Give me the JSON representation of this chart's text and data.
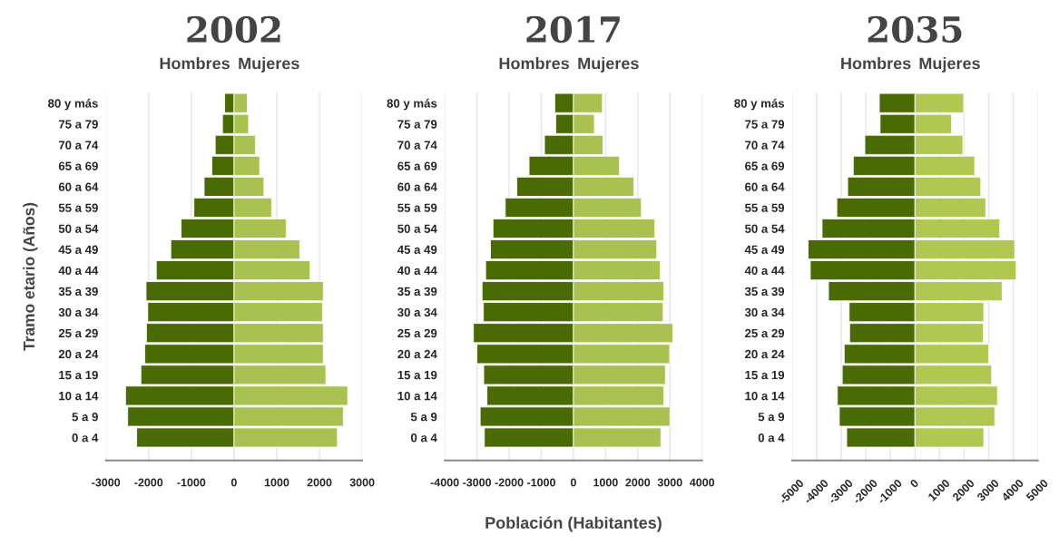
{
  "chart_data": [
    {
      "type": "bar",
      "title": "2002",
      "orientation": "horizontal",
      "stacked": true,
      "ylabel": "Tramo etario (Años)",
      "categories": [
        "80 y más",
        "75 a 79",
        "70 a 74",
        "65 a 69",
        "60 a 64",
        "55 a 59",
        "50 a 54",
        "45 a 49",
        "40 a 44",
        "35 a 39",
        "30 a 34",
        "25 a 29",
        "20 a 24",
        "15 a 19",
        "10 a 14",
        "5 a 9",
        "0 a 4"
      ],
      "series": [
        {
          "name": "Hombres",
          "color": "#4a6a04",
          "values": [
            -220,
            -270,
            -440,
            -520,
            -700,
            -940,
            -1240,
            -1480,
            -1820,
            -2060,
            -2020,
            -2050,
            -2090,
            -2180,
            -2540,
            -2490,
            -2280
          ]
        },
        {
          "name": "Mujeres",
          "color": "#a8c150",
          "values": [
            310,
            340,
            500,
            600,
            700,
            880,
            1220,
            1540,
            1780,
            2090,
            2070,
            2090,
            2090,
            2150,
            2660,
            2560,
            2420
          ]
        }
      ],
      "xlim": [
        -3000,
        3000
      ],
      "xticks": [
        -3000,
        -2000,
        -1000,
        0,
        1000,
        2000,
        3000
      ],
      "grid": "x"
    },
    {
      "type": "bar",
      "title": "2017",
      "orientation": "horizontal",
      "stacked": true,
      "xlabel": "Población (Habitantes)",
      "categories": [
        "80 y más",
        "75 a 79",
        "70 a 74",
        "65 a 69",
        "60 a 64",
        "55 a 59",
        "50 a 54",
        "45 a 49",
        "40 a 44",
        "35 a 39",
        "30 a 34",
        "25 a 29",
        "20 a 24",
        "15 a 19",
        "10 a 14",
        "5 a 9",
        "0 a 4"
      ],
      "series": [
        {
          "name": "Hombres",
          "color": "#4a6a04",
          "values": [
            -580,
            -550,
            -900,
            -1380,
            -1760,
            -2120,
            -2500,
            -2580,
            -2730,
            -2840,
            -2800,
            -3110,
            -3000,
            -2790,
            -2690,
            -2900,
            -2770
          ]
        },
        {
          "name": "Mujeres",
          "color": "#a8c150",
          "values": [
            900,
            650,
            920,
            1430,
            1880,
            2110,
            2530,
            2590,
            2700,
            2810,
            2790,
            3090,
            2990,
            2860,
            2810,
            3000,
            2720
          ]
        }
      ],
      "xlim": [
        -4000,
        4000
      ],
      "xticks": [
        -4000,
        -3000,
        -2000,
        -1000,
        0,
        1000,
        2000,
        3000,
        4000
      ],
      "grid": "x"
    },
    {
      "type": "bar",
      "title": "2035",
      "orientation": "horizontal",
      "stacked": true,
      "categories": [
        "80 y más",
        "75 a 79",
        "70 a 74",
        "65 a 69",
        "60 a 64",
        "55 a 59",
        "50 a 54",
        "45 a 49",
        "40 a 44",
        "35 a 39",
        "30 a 34",
        "25 a 29",
        "20 a 24",
        "15 a 19",
        "10 a 14",
        "5 a 9",
        "0 a 4"
      ],
      "series": [
        {
          "name": "Hombres",
          "color": "#4a6a04",
          "values": [
            -1450,
            -1420,
            -2040,
            -2510,
            -2740,
            -3180,
            -3780,
            -4350,
            -4260,
            -3520,
            -2680,
            -2660,
            -2880,
            -2960,
            -3160,
            -3080,
            -2780
          ]
        },
        {
          "name": "Mujeres",
          "color": "#b0c852",
          "values": [
            1980,
            1490,
            1950,
            2430,
            2680,
            2880,
            3450,
            4060,
            4120,
            3550,
            2800,
            2780,
            3000,
            3120,
            3360,
            3250,
            2800
          ]
        }
      ],
      "xlim": [
        -5000,
        5000
      ],
      "xticks": [
        -5000,
        -4000,
        -3000,
        -2000,
        -1000,
        0,
        1000,
        2000,
        3000,
        4000,
        5000
      ],
      "grid": "x"
    }
  ]
}
